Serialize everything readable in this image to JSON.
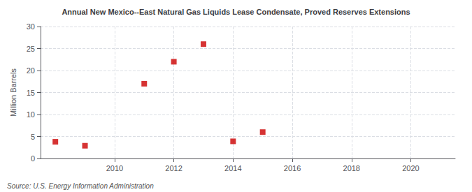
{
  "chart_data": {
    "type": "scatter",
    "title": "Annual New Mexico--East Natural Gas Liquids Lease Condensate, Proved Reserves Extensions",
    "ylabel": "Million Barrels",
    "annotations": [
      "Source: U.S. Energy Information Administration"
    ],
    "x": [
      2008,
      2009,
      2011,
      2012,
      2013,
      2014,
      2015
    ],
    "values": [
      3.8,
      2.9,
      17.0,
      22.0,
      26.0,
      3.9,
      6.0
    ],
    "color": "#cc0000",
    "marker": "square",
    "xlim": [
      2007.5,
      2021.5
    ],
    "xticks": [
      2010,
      2012,
      2014,
      2016,
      2018,
      2020
    ],
    "ylim": [
      0,
      30
    ],
    "yticks": [
      0,
      5,
      10,
      15,
      20,
      25,
      30
    ],
    "grid": true
  }
}
